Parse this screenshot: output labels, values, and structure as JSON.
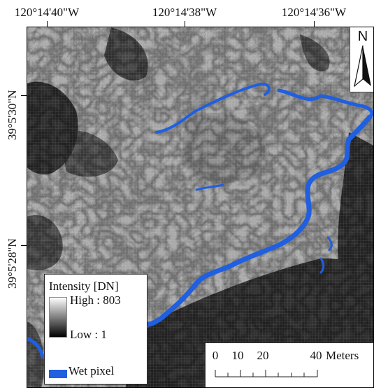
{
  "map": {
    "top_ticks": [
      "120°14'40\"W",
      "120°14'38\"W",
      "120°14'36\"W"
    ],
    "left_ticks": [
      "39°5'30\"N",
      "39°5'28\"N"
    ],
    "north_arrow": {
      "label": "N",
      "icon": "north-arrow-icon"
    },
    "legend": {
      "title": "Intensity [DN]",
      "high_label": "High : 803",
      "low_label": "Low : 1",
      "wet_label": "Wet pixel",
      "wet_color": "#1f5fe0"
    },
    "scale_bar": {
      "labels": [
        "0",
        "10",
        "20"
      ],
      "end_label": "40",
      "unit": "Meters"
    }
  }
}
